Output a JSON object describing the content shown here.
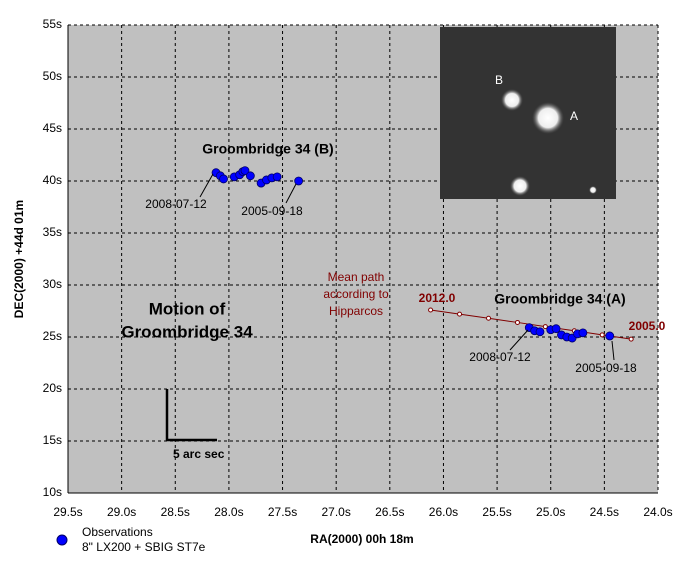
{
  "chart_data": {
    "type": "scatter",
    "xlabel": "RA(2000) 00h 18m",
    "ylabel": "DEC(2000) +44d 01m",
    "xlim": [
      29.5,
      24.0
    ],
    "ylim": [
      10,
      55
    ],
    "xticks": [
      {
        "value": 29.5,
        "label": "29.5s"
      },
      {
        "value": 29.0,
        "label": "29.0s"
      },
      {
        "value": 28.5,
        "label": "28.5s"
      },
      {
        "value": 28.0,
        "label": "28.0s"
      },
      {
        "value": 27.5,
        "label": "27.5s"
      },
      {
        "value": 27.0,
        "label": "27.0s"
      },
      {
        "value": 26.5,
        "label": "26.5s"
      },
      {
        "value": 26.0,
        "label": "26.0s"
      },
      {
        "value": 25.5,
        "label": "25.5s"
      },
      {
        "value": 25.0,
        "label": "25.0s"
      },
      {
        "value": 24.5,
        "label": "24.5s"
      },
      {
        "value": 24.0,
        "label": "24.0s"
      }
    ],
    "yticks": [
      {
        "value": 10,
        "label": "10s"
      },
      {
        "value": 15,
        "label": "15s"
      },
      {
        "value": 20,
        "label": "20s"
      },
      {
        "value": 25,
        "label": "25s"
      },
      {
        "value": 30,
        "label": "30s"
      },
      {
        "value": 35,
        "label": "35s"
      },
      {
        "value": 40,
        "label": "40s"
      },
      {
        "value": 45,
        "label": "45s"
      },
      {
        "value": 50,
        "label": "50s"
      },
      {
        "value": 55,
        "label": "55s"
      }
    ],
    "grid": true,
    "series": [
      {
        "name": "Observations",
        "color": "#0000ff",
        "x": [
          28.12,
          28.08,
          28.05,
          27.95,
          27.9,
          27.87,
          27.85,
          27.8,
          27.7,
          27.65,
          27.6,
          27.55,
          27.35,
          25.2,
          25.15,
          25.1,
          25.0,
          24.95,
          24.9,
          24.85,
          24.8,
          24.75,
          24.7,
          24.45
        ],
        "values": [
          40.8,
          40.5,
          40.2,
          40.4,
          40.6,
          40.9,
          41.0,
          40.5,
          39.8,
          40.1,
          40.3,
          40.4,
          40.0,
          25.9,
          25.6,
          25.5,
          25.7,
          25.8,
          25.2,
          25.0,
          24.9,
          25.3,
          25.4,
          25.1
        ]
      }
    ],
    "legend_note": "8\" LX200 + SBIG ST7e",
    "path": {
      "color": "#800000",
      "x": [
        26.12,
        25.85,
        25.58,
        25.31,
        25.05,
        24.78,
        24.52,
        24.25
      ],
      "values": [
        27.6,
        27.2,
        26.8,
        26.4,
        26.0,
        25.6,
        25.2,
        24.8
      ],
      "label": [
        "Mean path",
        "according to",
        "Hipparcos"
      ],
      "start_label": "2012.0",
      "end_label": "2005.0"
    },
    "annotations": [
      "Groombridge 34 (B)",
      "2008-07-12",
      "2005-09-18",
      "Groombridge 34 (A)",
      "2008-07-12",
      "2005-09-18"
    ],
    "title": [
      "Motion of",
      "Groombridge 34"
    ],
    "scale_label": "5 arc sec",
    "inset_labels": [
      "B",
      "A"
    ]
  }
}
